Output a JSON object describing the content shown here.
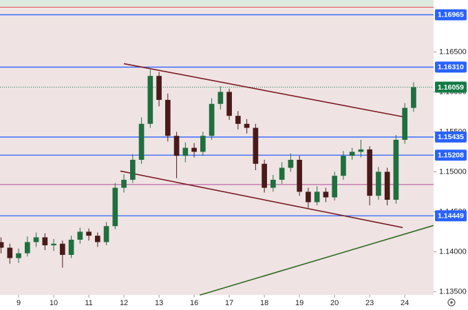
{
  "chart_data": {
    "type": "candlestick",
    "x": [
      -0.5,
      -0.25,
      0,
      0.25,
      0.5,
      0.75,
      1,
      1.25,
      1.5,
      1.75,
      2,
      2.25,
      2.5,
      2.75,
      3,
      3.25,
      3.5,
      3.75,
      4,
      4.25,
      4.5,
      4.75,
      5,
      5.25,
      5.5,
      5.75,
      6,
      6.25,
      6.5,
      6.75,
      7,
      7.25,
      7.5,
      7.75,
      8,
      8.25,
      8.5,
      8.75,
      9,
      9.25,
      9.5,
      9.75,
      10,
      10.25,
      10.5,
      10.75,
      11,
      11.25
    ],
    "open": [
      1.1412,
      1.1405,
      1.1392,
      1.1398,
      1.1412,
      1.1418,
      1.1408,
      1.141,
      1.1396,
      1.1415,
      1.1425,
      1.142,
      1.1412,
      1.1432,
      1.148,
      1.149,
      1.1515,
      1.156,
      1.162,
      1.159,
      1.1545,
      1.152,
      1.153,
      1.1525,
      1.1545,
      1.1585,
      1.16,
      1.157,
      1.156,
      1.1555,
      1.151,
      1.148,
      1.149,
      1.1505,
      1.1515,
      1.1475,
      1.1462,
      1.1475,
      1.1468,
      1.1495,
      1.152,
      1.1525,
      1.1528,
      1.147,
      1.15,
      1.1465,
      1.154,
      1.158
    ],
    "high": [
      1.1418,
      1.141,
      1.1404,
      1.1419,
      1.1424,
      1.1423,
      1.1416,
      1.1414,
      1.142,
      1.143,
      1.1429,
      1.1424,
      1.1437,
      1.1486,
      1.1497,
      1.1522,
      1.1568,
      1.1628,
      1.1625,
      1.1598,
      1.155,
      1.1537,
      1.1536,
      1.155,
      1.1592,
      1.1607,
      1.1604,
      1.1576,
      1.1566,
      1.156,
      1.1515,
      1.1496,
      1.1512,
      1.1523,
      1.152,
      1.148,
      1.1482,
      1.148,
      1.15,
      1.1526,
      1.153,
      1.154,
      1.1532,
      1.1506,
      1.1505,
      1.1546,
      1.1586,
      1.1612
    ],
    "low": [
      1.1398,
      1.1385,
      1.1386,
      1.1394,
      1.1406,
      1.1402,
      1.1401,
      1.138,
      1.1392,
      1.141,
      1.1414,
      1.1406,
      1.1408,
      1.1428,
      1.1474,
      1.1486,
      1.151,
      1.1555,
      1.1582,
      1.1538,
      1.1492,
      1.1512,
      1.1518,
      1.152,
      1.154,
      1.1578,
      1.1565,
      1.1553,
      1.1548,
      1.1502,
      1.1474,
      1.1475,
      1.1485,
      1.15,
      1.147,
      1.1455,
      1.1458,
      1.1462,
      1.1464,
      1.149,
      1.1515,
      1.1518,
      1.1458,
      1.1465,
      1.1458,
      1.146,
      1.1535,
      1.1575
    ],
    "close": [
      1.1405,
      1.1392,
      1.1398,
      1.1412,
      1.1418,
      1.1408,
      1.141,
      1.1396,
      1.1415,
      1.1425,
      1.142,
      1.1412,
      1.1432,
      1.148,
      1.149,
      1.1515,
      1.156,
      1.162,
      1.159,
      1.1545,
      1.152,
      1.153,
      1.1525,
      1.1545,
      1.1585,
      1.16,
      1.157,
      1.156,
      1.1555,
      1.151,
      1.148,
      1.149,
      1.1505,
      1.1515,
      1.1475,
      1.1462,
      1.1475,
      1.1468,
      1.1495,
      1.152,
      1.1525,
      1.1528,
      1.147,
      1.15,
      1.1465,
      1.154,
      1.158,
      1.16059
    ],
    "up_color": "#1f6f3f",
    "down_color": "#4a1a1a",
    "xlim": [
      -0.53,
      11.82
    ],
    "ylim": [
      1.1346,
      1.1715
    ],
    "yticks": [
      {
        "value": 1.135,
        "label": "1.13500"
      },
      {
        "value": 1.14,
        "label": "1.14000"
      },
      {
        "value": 1.145,
        "label": "1.14500"
      },
      {
        "value": 1.15,
        "label": "1.15000"
      },
      {
        "value": 1.155,
        "label": "1.15500"
      },
      {
        "value": 1.16,
        "label": "1.16000"
      },
      {
        "value": 1.165,
        "label": "1.16500"
      }
    ],
    "xticks": [
      {
        "value": 0,
        "label": "9"
      },
      {
        "value": 1,
        "label": "10"
      },
      {
        "value": 2,
        "label": "11"
      },
      {
        "value": 3,
        "label": "12"
      },
      {
        "value": 4,
        "label": "13"
      },
      {
        "value": 5,
        "label": "16"
      },
      {
        "value": 6,
        "label": "17"
      },
      {
        "value": 7,
        "label": "18"
      },
      {
        "value": 8,
        "label": "19"
      },
      {
        "value": 9,
        "label": "20"
      },
      {
        "value": 10,
        "label": "23"
      },
      {
        "value": 11,
        "label": "24"
      }
    ],
    "levels": [
      1.16965,
      {
        "value": 1.1631,
        "label": "1.16310"
      },
      1.15435,
      1.15208,
      1.14449
    ],
    "level_color": "#2962ff",
    "last_price": 1.16059,
    "last_price_color": "#137a45",
    "upper_line": 1.1706,
    "upper_line_color": "#e0505a",
    "mid_line": 1.1484,
    "mid_line_color": "#b04a9a",
    "trendlines": [
      {
        "color": "#7a1a22",
        "x": [
          3.0,
          11.04
        ],
        "y": [
          1.16353,
          1.15681
        ]
      },
      {
        "color": "#7a1a22",
        "x": [
          2.9,
          10.94
        ],
        "y": [
          1.15009,
          1.14302
        ]
      },
      {
        "color": "#2e6a1e",
        "x": [
          5.16,
          11.82
        ],
        "y": [
          1.13457,
          1.14328
        ]
      }
    ]
  }
}
